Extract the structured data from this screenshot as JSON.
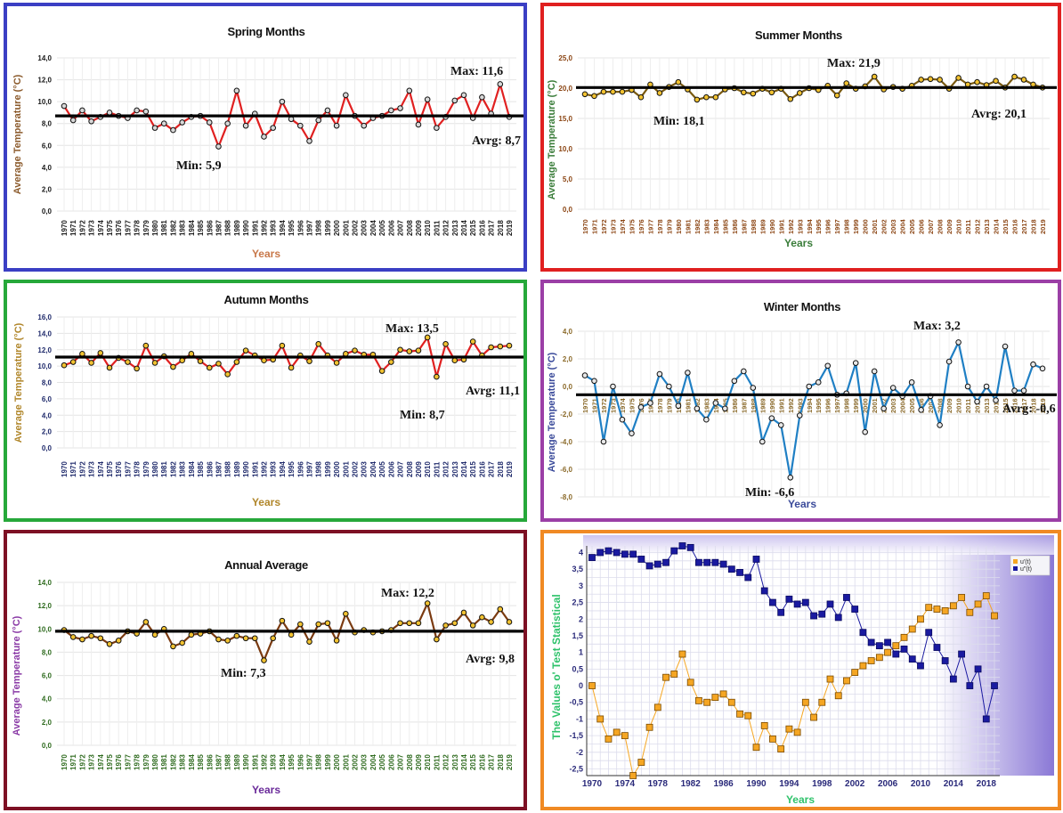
{
  "panels": [
    {
      "id": "spring",
      "title": "Spring Months",
      "ylabel": "Average Temperature (°C)",
      "xlabel": "Years",
      "ylabel_color": "#8b5a2b",
      "xlabel_color": "#c8784a",
      "tick_color": "#1a1a1a",
      "line_color": "#e02020",
      "marker_fill": "#d8d8d8",
      "yticks": [
        "0,0",
        "2,0",
        "4,0",
        "6,0",
        "8,0",
        "10,0",
        "12,0",
        "14,0"
      ],
      "ylim": [
        0,
        14
      ],
      "avg": 8.7,
      "max_label": "Max:",
      "max_value": "11,6",
      "min_label": "Min:",
      "min_value": "5,9",
      "avg_label": "Avrg:",
      "avg_value": "8,7"
    },
    {
      "id": "summer",
      "title": "Summer Months",
      "ylabel": "Average Temperature (°C)",
      "xlabel": "Years",
      "ylabel_color": "#3a7d3a",
      "xlabel_color": "#3a7d3a",
      "tick_color": "#8b4513",
      "line_color": "#7a5a10",
      "marker_fill": "#f2c230",
      "yticks": [
        "0,0",
        "5,0",
        "10,0",
        "15,0",
        "20,0",
        "25,0"
      ],
      "ylim": [
        0,
        25
      ],
      "avg": 20.1,
      "max_label": "Max:",
      "max_value": "21,9",
      "min_label": "Min:",
      "min_value": "18,1",
      "avg_label": "Avrg:",
      "avg_value": "20,1"
    },
    {
      "id": "autumn",
      "title": "Autumn Months",
      "ylabel": "Average Temperature (°C)",
      "xlabel": "Years",
      "ylabel_color": "#b0862a",
      "xlabel_color": "#b0862a",
      "tick_color": "#1f2a6b",
      "line_color": "#e02020",
      "marker_fill": "#f2c230",
      "yticks": [
        "0,0",
        "2,0",
        "4,0",
        "6,0",
        "8,0",
        "10,0",
        "12,0",
        "14,0",
        "16,0"
      ],
      "ylim": [
        0,
        16
      ],
      "avg": 11.1,
      "max_label": "Max:",
      "max_value": "13,5",
      "min_label": "Min:",
      "min_value": "8,7",
      "avg_label": "Avrg:",
      "avg_value": "11,1"
    },
    {
      "id": "winter",
      "title": "Winter Months",
      "ylabel": "Average Temperature (°C)",
      "xlabel": "Years",
      "ylabel_color": "#3a4a9a",
      "xlabel_color": "#3a4a9a",
      "tick_color": "#8b6a2a",
      "line_color": "#1f7fc4",
      "marker_fill": "#e8e8e8",
      "yticks": [
        "-8,0",
        "-6,0",
        "-4,0",
        "-2,0",
        "0,0",
        "2,0",
        "4,0"
      ],
      "ylim": [
        -8,
        4
      ],
      "avg": -0.6,
      "max_label": "Max:",
      "max_value": "3,2",
      "min_label": "Min:",
      "min_value": "-6,6",
      "avg_label": "Avrg:",
      "avg_value": "-0,6"
    },
    {
      "id": "annual",
      "title": "Annual Average",
      "ylabel": "Average Temperature (°C)",
      "xlabel": "Years",
      "ylabel_color": "#8a3aa6",
      "xlabel_color": "#6a2a9a",
      "tick_color": "#2f6b1f",
      "line_color": "#7a3a10",
      "marker_fill": "#f2c230",
      "yticks": [
        "0,0",
        "2,0",
        "4,0",
        "6,0",
        "8,0",
        "10,0",
        "12,0",
        "14,0"
      ],
      "ylim": [
        0,
        14
      ],
      "avg": 9.8,
      "max_label": "Max:",
      "max_value": "12,2",
      "min_label": "Min:",
      "min_value": "7,3",
      "avg_label": "Avrg:",
      "avg_value": "9,8"
    }
  ],
  "years": [
    "1970",
    "1971",
    "1972",
    "1973",
    "1974",
    "1975",
    "1976",
    "1977",
    "1978",
    "1979",
    "1980",
    "1981",
    "1982",
    "1983",
    "1984",
    "1985",
    "1986",
    "1987",
    "1988",
    "1989",
    "1990",
    "1991",
    "1992",
    "1993",
    "1994",
    "1995",
    "1996",
    "1997",
    "1998",
    "1999",
    "2000",
    "2001",
    "2002",
    "2003",
    "2004",
    "2005",
    "2006",
    "2007",
    "2008",
    "2009",
    "2010",
    "2011",
    "2012",
    "2013",
    "2014",
    "2015",
    "2016",
    "2017",
    "2018",
    "2019"
  ],
  "chart_data": [
    {
      "type": "line",
      "title": "Spring Months",
      "xlabel": "Years",
      "ylabel": "Average Temperature (°C)",
      "ylim": [
        0,
        14
      ],
      "x": [
        1970,
        1971,
        1972,
        1973,
        1974,
        1975,
        1976,
        1977,
        1978,
        1979,
        1980,
        1981,
        1982,
        1983,
        1984,
        1985,
        1986,
        1987,
        1988,
        1989,
        1990,
        1991,
        1992,
        1993,
        1994,
        1995,
        1996,
        1997,
        1998,
        1999,
        2000,
        2001,
        2002,
        2003,
        2004,
        2005,
        2006,
        2007,
        2008,
        2009,
        2010,
        2011,
        2012,
        2013,
        2014,
        2015,
        2016,
        2017,
        2018,
        2019
      ],
      "values": [
        9.6,
        8.3,
        9.2,
        8.2,
        8.6,
        9.0,
        8.7,
        8.5,
        9.2,
        9.1,
        7.6,
        8.0,
        7.4,
        8.1,
        8.6,
        8.7,
        8.1,
        5.9,
        8.0,
        11.0,
        7.8,
        8.9,
        6.8,
        7.6,
        10.0,
        8.4,
        7.8,
        6.4,
        8.3,
        9.2,
        7.8,
        10.6,
        8.7,
        7.8,
        8.5,
        8.7,
        9.2,
        9.4,
        11.0,
        7.9,
        10.2,
        7.6,
        8.6,
        10.1,
        10.6,
        8.5,
        10.4,
        8.9,
        11.6,
        8.6
      ],
      "average": 8.7,
      "max": 11.6,
      "min": 5.9,
      "grid": true
    },
    {
      "type": "line",
      "title": "Summer Months",
      "xlabel": "Years",
      "ylabel": "Average Temperature (°C)",
      "ylim": [
        0,
        25
      ],
      "x": [
        1970,
        1971,
        1972,
        1973,
        1974,
        1975,
        1976,
        1977,
        1978,
        1979,
        1980,
        1981,
        1982,
        1983,
        1984,
        1985,
        1986,
        1987,
        1988,
        1989,
        1990,
        1991,
        1992,
        1993,
        1994,
        1995,
        1996,
        1997,
        1998,
        1999,
        2000,
        2001,
        2002,
        2003,
        2004,
        2005,
        2006,
        2007,
        2008,
        2009,
        2010,
        2011,
        2012,
        2013,
        2014,
        2015,
        2016,
        2017,
        2018,
        2019
      ],
      "values": [
        19.0,
        18.7,
        19.4,
        19.4,
        19.4,
        19.7,
        18.5,
        20.6,
        19.2,
        20.2,
        21.0,
        19.8,
        18.1,
        18.5,
        18.5,
        19.8,
        20.0,
        19.3,
        19.1,
        19.9,
        19.3,
        19.9,
        18.2,
        19.2,
        20.0,
        19.7,
        20.4,
        18.8,
        20.8,
        19.9,
        20.3,
        21.9,
        19.8,
        20.2,
        19.9,
        20.4,
        21.4,
        21.5,
        21.4,
        19.9,
        21.7,
        20.6,
        21.0,
        20.5,
        21.2,
        20.1,
        21.9,
        21.4,
        20.6,
        20.1
      ],
      "average": 20.1,
      "max": 21.9,
      "min": 18.1,
      "grid": true
    },
    {
      "type": "line",
      "title": "Autumn Months",
      "xlabel": "Years",
      "ylabel": "Average Temperature (°C)",
      "ylim": [
        0,
        16
      ],
      "x": [
        1970,
        1971,
        1972,
        1973,
        1974,
        1975,
        1976,
        1977,
        1978,
        1979,
        1980,
        1981,
        1982,
        1983,
        1984,
        1985,
        1986,
        1987,
        1988,
        1989,
        1990,
        1991,
        1992,
        1993,
        1994,
        1995,
        1996,
        1997,
        1998,
        1999,
        2000,
        2001,
        2002,
        2003,
        2004,
        2005,
        2006,
        2007,
        2008,
        2009,
        2010,
        2011,
        2012,
        2013,
        2014,
        2015,
        2016,
        2017,
        2018,
        2019
      ],
      "values": [
        10.1,
        10.5,
        11.5,
        10.4,
        11.6,
        9.8,
        11.0,
        10.5,
        9.7,
        12.5,
        10.4,
        11.2,
        9.9,
        10.7,
        11.5,
        10.6,
        9.8,
        10.3,
        9.0,
        10.5,
        11.9,
        11.3,
        10.7,
        10.8,
        12.5,
        9.8,
        11.3,
        10.6,
        12.7,
        11.3,
        10.4,
        11.5,
        11.9,
        11.4,
        11.4,
        9.4,
        10.5,
        12.0,
        11.8,
        11.9,
        13.5,
        8.7,
        12.7,
        10.7,
        10.8,
        13.0,
        11.3,
        12.3,
        12.4,
        12.5
      ],
      "average": 11.1,
      "max": 13.5,
      "min": 8.7,
      "grid": true
    },
    {
      "type": "line",
      "title": "Winter Months",
      "xlabel": "Years",
      "ylabel": "Average Temperature (°C)",
      "ylim": [
        -8,
        4
      ],
      "x": [
        1970,
        1971,
        1972,
        1973,
        1974,
        1975,
        1976,
        1977,
        1978,
        1979,
        1980,
        1981,
        1982,
        1983,
        1984,
        1985,
        1986,
        1987,
        1988,
        1989,
        1990,
        1991,
        1992,
        1993,
        1994,
        1995,
        1996,
        1997,
        1998,
        1999,
        2000,
        2001,
        2002,
        2003,
        2004,
        2005,
        2006,
        2007,
        2008,
        2009,
        2010,
        2011,
        2012,
        2013,
        2014,
        2015,
        2016,
        2017,
        2018,
        2019
      ],
      "values": [
        0.8,
        0.4,
        -4.0,
        0.0,
        -2.4,
        -3.4,
        -1.5,
        -1.2,
        0.9,
        0.0,
        -1.4,
        1.0,
        -1.6,
        -2.4,
        -1.2,
        -1.6,
        0.4,
        1.1,
        -0.1,
        -4.0,
        -2.3,
        -2.8,
        -6.6,
        -2.1,
        0.0,
        0.3,
        1.5,
        -0.6,
        -0.5,
        1.7,
        -3.3,
        1.1,
        -1.6,
        -0.1,
        -0.7,
        0.3,
        -1.7,
        -0.7,
        -2.8,
        1.8,
        3.2,
        0.0,
        -1.1,
        0.0,
        -1.0,
        2.9,
        -0.3,
        -0.3,
        1.6,
        1.3
      ],
      "average": -0.6,
      "max": 3.2,
      "min": -6.6,
      "grid": true
    },
    {
      "type": "line",
      "title": "Annual Average",
      "xlabel": "Years",
      "ylabel": "Average Temperature (°C)",
      "ylim": [
        0,
        14
      ],
      "x": [
        1970,
        1971,
        1972,
        1973,
        1974,
        1975,
        1976,
        1977,
        1978,
        1979,
        1980,
        1981,
        1982,
        1983,
        1984,
        1985,
        1986,
        1987,
        1988,
        1989,
        1990,
        1991,
        1992,
        1993,
        1994,
        1995,
        1996,
        1997,
        1998,
        1999,
        2000,
        2001,
        2002,
        2003,
        2004,
        2005,
        2006,
        2007,
        2008,
        2009,
        2010,
        2011,
        2012,
        2013,
        2014,
        2015,
        2016,
        2017,
        2018,
        2019
      ],
      "values": [
        9.9,
        9.3,
        9.1,
        9.4,
        9.2,
        8.7,
        9.0,
        9.8,
        9.6,
        10.6,
        9.5,
        10.0,
        8.5,
        8.8,
        9.5,
        9.6,
        9.8,
        9.1,
        9.0,
        9.4,
        9.2,
        9.2,
        7.3,
        9.2,
        10.7,
        9.5,
        10.4,
        8.9,
        10.4,
        10.5,
        9.0,
        11.3,
        9.7,
        9.9,
        9.7,
        9.8,
        9.9,
        10.5,
        10.5,
        10.5,
        12.2,
        9.1,
        10.3,
        10.5,
        11.4,
        10.3,
        11.0,
        10.6,
        11.7,
        10.6
      ],
      "average": 9.8,
      "max": 12.2,
      "min": 7.3,
      "grid": true
    },
    {
      "type": "line",
      "ylabel": "The Values o' Test Statistical",
      "xlabel": "Years",
      "ylim": [
        -2.7,
        4.2
      ],
      "x": [
        1970,
        1971,
        1972,
        1973,
        1974,
        1975,
        1976,
        1977,
        1978,
        1979,
        1980,
        1981,
        1982,
        1983,
        1984,
        1985,
        1986,
        1987,
        1988,
        1989,
        1990,
        1991,
        1992,
        1993,
        1994,
        1995,
        1996,
        1997,
        1998,
        1999,
        2000,
        2001,
        2002,
        2003,
        2004,
        2005,
        2006,
        2007,
        2008,
        2009,
        2010,
        2011,
        2012,
        2013,
        2014,
        2015,
        2016,
        2017,
        2018,
        2019
      ],
      "xticks": [
        "1970",
        "1974",
        "1978",
        "1982",
        "1986",
        "1990",
        "1994",
        "1998",
        "2002",
        "2006",
        "2010",
        "2014",
        "2018"
      ],
      "yticks": [
        "-2,5",
        "-2",
        "-1,5",
        "-1",
        "-0,5",
        "0",
        "0,5",
        "1",
        "1,5",
        "2",
        "2,5",
        "3",
        "3,5",
        "4"
      ],
      "series": [
        {
          "name": "u'(t)",
          "color": "#f5a623",
          "values": [
            0.0,
            -1.0,
            -1.6,
            -1.4,
            -1.5,
            -2.7,
            -2.3,
            -1.25,
            -0.65,
            0.25,
            0.35,
            0.95,
            0.1,
            -0.45,
            -0.5,
            -0.35,
            -0.25,
            -0.5,
            -0.85,
            -0.9,
            -1.85,
            -1.2,
            -1.6,
            -1.9,
            -1.3,
            -1.4,
            -0.5,
            -0.95,
            -0.5,
            0.2,
            -0.3,
            0.15,
            0.4,
            0.6,
            0.75,
            0.85,
            1.0,
            1.2,
            1.45,
            1.7,
            2.0,
            2.35,
            2.3,
            2.25,
            2.4,
            2.65,
            2.2,
            2.45,
            2.7,
            2.1
          ]
        },
        {
          "name": "u\"(t)",
          "color": "#1a1aa0",
          "values": [
            3.85,
            4.0,
            4.05,
            4.0,
            3.95,
            3.95,
            3.8,
            3.6,
            3.65,
            3.7,
            4.05,
            4.2,
            4.15,
            3.7,
            3.7,
            3.7,
            3.65,
            3.5,
            3.4,
            3.25,
            3.8,
            2.85,
            2.5,
            2.2,
            2.6,
            2.45,
            2.5,
            2.1,
            2.15,
            2.45,
            2.05,
            2.65,
            2.3,
            1.6,
            1.3,
            1.2,
            1.3,
            0.95,
            1.1,
            0.8,
            0.6,
            1.6,
            1.15,
            0.75,
            0.2,
            0.95,
            0.0,
            0.5,
            -1.0,
            0.0
          ]
        }
      ],
      "grid": true
    }
  ]
}
